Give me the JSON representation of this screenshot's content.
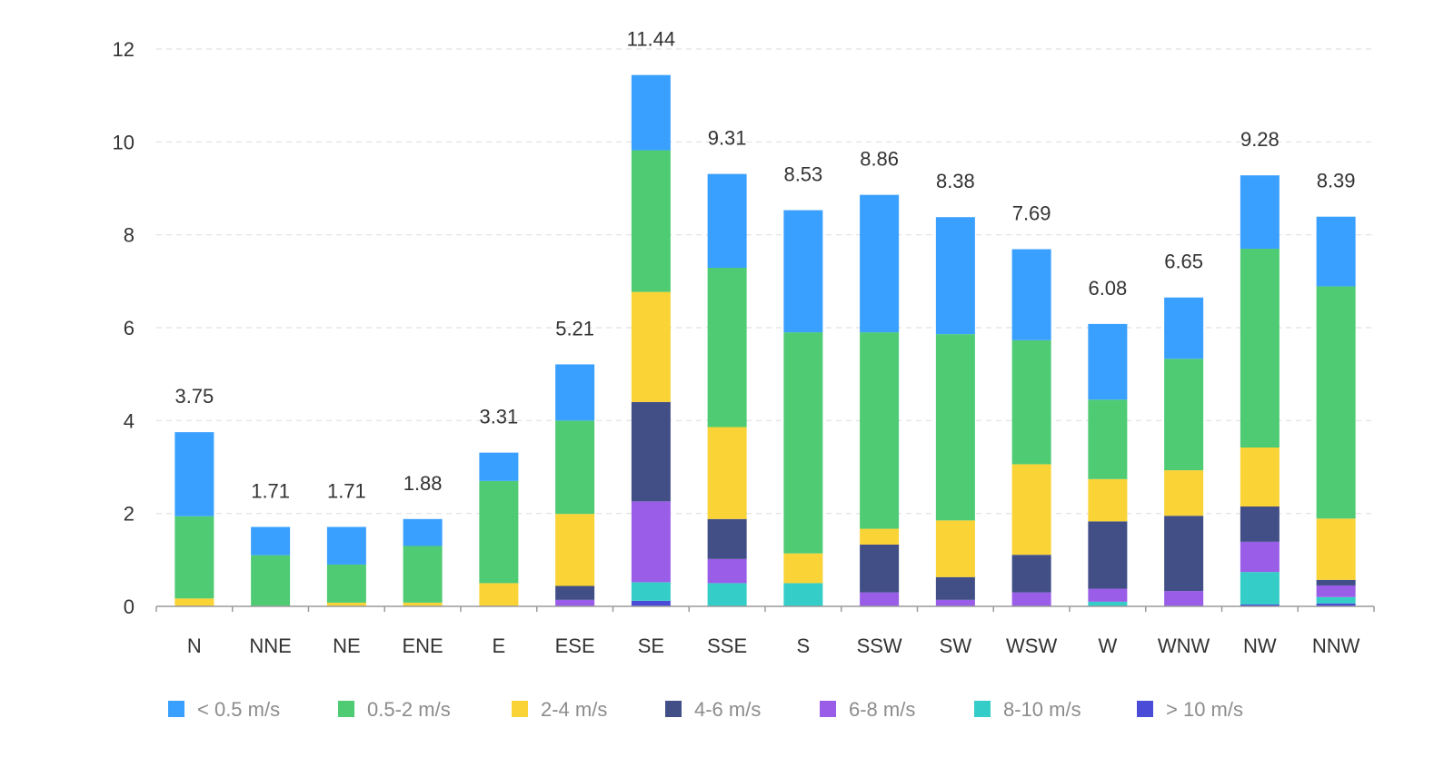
{
  "chart_data": {
    "type": "bar",
    "stacked": true,
    "title": "",
    "xlabel": "",
    "ylabel": "",
    "ylim": [
      0,
      12
    ],
    "y_ticks": [
      0,
      2,
      4,
      6,
      8,
      10,
      12
    ],
    "grid": "horizontal dashed",
    "legend_position": "bottom-left",
    "categories": [
      "N",
      "NNE",
      "NE",
      "ENE",
      "E",
      "ESE",
      "SE",
      "SSE",
      "S",
      "SSW",
      "SW",
      "WSW",
      "W",
      "WNW",
      "NW",
      "NNW"
    ],
    "totals": [
      "3.75",
      "1.71",
      "1.71",
      "1.88",
      "3.31",
      "5.21",
      "11.44",
      "9.31",
      "8.53",
      "8.86",
      "8.38",
      "7.69",
      "6.08",
      "6.65",
      "9.28",
      "8.39"
    ],
    "series": [
      {
        "name": "> 10 m/s",
        "color": "#4a4bd6",
        "values": [
          0,
          0,
          0,
          0,
          0,
          0,
          0.12,
          0,
          0,
          0,
          0,
          0,
          0,
          0,
          0.04,
          0.06
        ]
      },
      {
        "name": "8-10 m/s",
        "color": "#35cdc8",
        "values": [
          0,
          0,
          0,
          0,
          0,
          0,
          0.4,
          0.5,
          0.5,
          0,
          0,
          0,
          0.1,
          0,
          0.7,
          0.14
        ]
      },
      {
        "name": "6-8 m/s",
        "color": "#9a5de8",
        "values": [
          0,
          0,
          0,
          0,
          0,
          0.14,
          1.74,
          0.52,
          0,
          0.3,
          0.14,
          0.3,
          0.28,
          0.33,
          0.65,
          0.25
        ]
      },
      {
        "name": "4-6 m/s",
        "color": "#414f86",
        "values": [
          0,
          0,
          0,
          0,
          0,
          0.3,
          2.14,
          0.86,
          0,
          1.03,
          0.49,
          0.81,
          1.45,
          1.62,
          0.76,
          0.12
        ]
      },
      {
        "name": "2-4 m/s",
        "color": "#fad336",
        "values": [
          0.17,
          0,
          0.08,
          0.08,
          0.5,
          1.55,
          2.37,
          1.98,
          0.64,
          0.34,
          1.22,
          1.95,
          0.91,
          0.98,
          1.27,
          1.32
        ]
      },
      {
        "name": "0.5-2 m/s",
        "color": "#4fcb74",
        "values": [
          1.77,
          1.1,
          0.82,
          1.22,
          2.2,
          2.01,
          3.05,
          3.43,
          4.76,
          4.23,
          4.01,
          2.67,
          1.71,
          2.4,
          4.28,
          5.0
        ]
      },
      {
        "name": "< 0.5 m/s",
        "color": "#3aa0ff",
        "values": [
          1.81,
          0.61,
          0.81,
          0.58,
          0.61,
          1.21,
          1.62,
          2.02,
          2.63,
          2.96,
          2.52,
          1.96,
          1.63,
          1.32,
          1.58,
          1.5
        ]
      }
    ],
    "legend": [
      {
        "name": "< 0.5 m/s",
        "color": "#3aa0ff"
      },
      {
        "name": "0.5-2 m/s",
        "color": "#4fcb74"
      },
      {
        "name": "2-4 m/s",
        "color": "#fad336"
      },
      {
        "name": "4-6 m/s",
        "color": "#414f86"
      },
      {
        "name": "6-8 m/s",
        "color": "#9a5de8"
      },
      {
        "name": "8-10 m/s",
        "color": "#35cdc8"
      },
      {
        "name": "> 10 m/s",
        "color": "#4a4bd6"
      }
    ]
  }
}
